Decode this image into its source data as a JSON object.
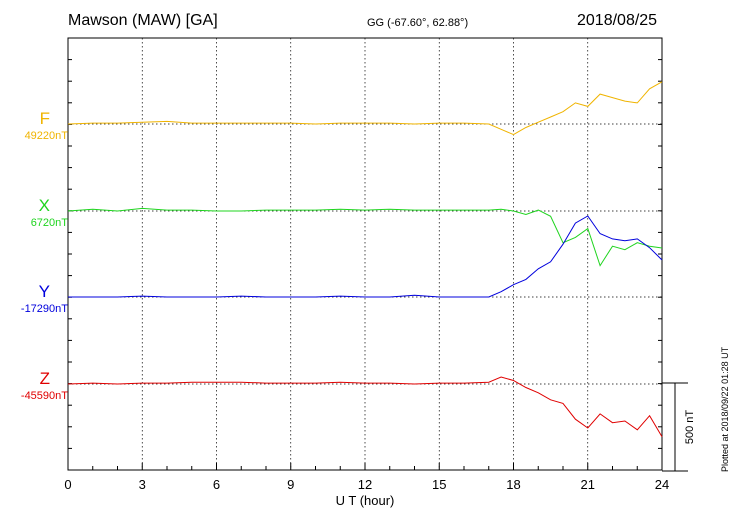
{
  "header": {
    "station": "Mawson (MAW)  [GA]",
    "coords": "GG (-67.60°,  62.88°)",
    "date": "2018/08/25"
  },
  "side_note": "Plotted at 2018/09/22 01:28 UT",
  "scale_label": "500 nT",
  "colors": {
    "F": "#f0b400",
    "X": "#1fd41f",
    "Y": "#0000dd",
    "Z": "#e00000"
  },
  "chart_data": {
    "type": "line",
    "xlabel": "U T (hour)",
    "xlim": [
      0,
      24
    ],
    "x_ticks": [
      "0",
      "3",
      "6",
      "9",
      "12",
      "15",
      "18",
      "21",
      "24"
    ],
    "grid": true,
    "scale_bar_nT": 500,
    "series": [
      {
        "name": "F",
        "baseline_label": "49220nT",
        "x": [
          0,
          1,
          2,
          3,
          4,
          5,
          6,
          7,
          8,
          9,
          10,
          11,
          12,
          13,
          14,
          15,
          16,
          17,
          17.5,
          18,
          18.5,
          19,
          19.5,
          20,
          20.5,
          21,
          21.5,
          22,
          22.5,
          23,
          23.5,
          24
        ],
        "y": [
          0,
          5,
          5,
          10,
          15,
          5,
          5,
          5,
          5,
          5,
          0,
          5,
          5,
          5,
          0,
          5,
          5,
          0,
          -30,
          -60,
          -20,
          10,
          40,
          70,
          120,
          100,
          170,
          150,
          130,
          120,
          200,
          240
        ]
      },
      {
        "name": "X",
        "baseline_label": "6720nT",
        "x": [
          0,
          1,
          2,
          3,
          4,
          5,
          6,
          7,
          8,
          9,
          10,
          11,
          12,
          13,
          14,
          15,
          16,
          17,
          17.5,
          18,
          18.5,
          19,
          19.5,
          20,
          20.5,
          21,
          21.5,
          22,
          22.5,
          23,
          23.5,
          24
        ],
        "y": [
          0,
          10,
          0,
          15,
          5,
          5,
          0,
          0,
          5,
          5,
          5,
          10,
          5,
          10,
          5,
          5,
          5,
          5,
          10,
          0,
          -20,
          5,
          -30,
          -180,
          -150,
          -100,
          -310,
          -200,
          -220,
          -180,
          -200,
          -210
        ]
      },
      {
        "name": "Y",
        "baseline_label": "-17290nT",
        "x": [
          0,
          1,
          2,
          3,
          4,
          5,
          6,
          7,
          8,
          9,
          10,
          11,
          12,
          13,
          14,
          15,
          16,
          17,
          17.5,
          18,
          18.5,
          19,
          19.5,
          20,
          20.5,
          21,
          21.5,
          22,
          22.5,
          23,
          23.5,
          24
        ],
        "y": [
          0,
          0,
          0,
          5,
          0,
          0,
          0,
          5,
          0,
          0,
          0,
          5,
          0,
          0,
          10,
          0,
          0,
          0,
          30,
          70,
          100,
          160,
          200,
          300,
          420,
          460,
          360,
          330,
          320,
          330,
          280,
          210
        ]
      },
      {
        "name": "Z",
        "baseline_label": "-45590nT",
        "x": [
          0,
          1,
          2,
          3,
          4,
          5,
          6,
          7,
          8,
          9,
          10,
          11,
          12,
          13,
          14,
          15,
          16,
          17,
          17.5,
          18,
          18.5,
          19,
          19.5,
          20,
          20.5,
          21,
          21.5,
          22,
          22.5,
          23,
          23.5,
          24
        ],
        "y": [
          0,
          5,
          0,
          5,
          5,
          10,
          10,
          10,
          5,
          5,
          5,
          10,
          5,
          5,
          0,
          5,
          5,
          10,
          40,
          20,
          -20,
          -50,
          -90,
          -110,
          -200,
          -250,
          -170,
          -220,
          -210,
          -260,
          -180,
          -300
        ]
      }
    ]
  }
}
